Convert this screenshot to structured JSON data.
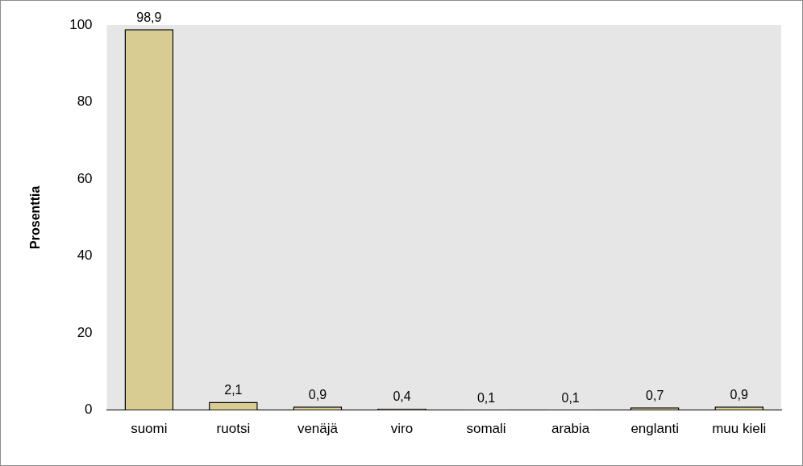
{
  "chart_data": {
    "type": "bar",
    "ylabel": "Prosenttia",
    "categories": [
      "suomi",
      "ruotsi",
      "venäjä",
      "viro",
      "somali",
      "arabia",
      "englanti",
      "muu kieli"
    ],
    "values": [
      98.9,
      2.1,
      0.9,
      0.4,
      0.1,
      0.1,
      0.7,
      0.9
    ],
    "value_labels": [
      "98,9",
      "2,1",
      "0,9",
      "0,4",
      "0,1",
      "0,1",
      "0,7",
      "0,9"
    ],
    "color": "#d8cc92",
    "ylim": [
      0,
      100
    ],
    "yticks": [
      0,
      20,
      40,
      60,
      80,
      100
    ],
    "grid": false,
    "data_labels": true
  }
}
